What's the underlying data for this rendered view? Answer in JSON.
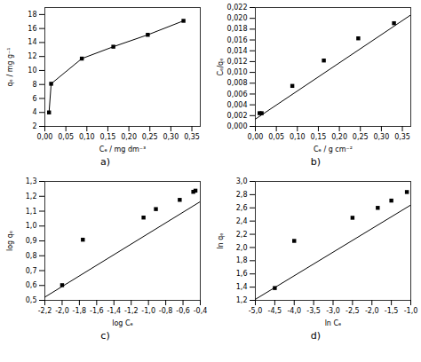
{
  "chart_data": [
    {
      "type": "line",
      "title": "a)",
      "xlabel": "Cₑ / mg dm⁻³",
      "ylabel": "qₑ / mg g⁻¹",
      "xlim": [
        0,
        0.37
      ],
      "ylim": [
        2,
        19
      ],
      "xticks": [
        {
          "value": 0.0,
          "label": "0,00"
        },
        {
          "value": 0.05,
          "label": "0,05"
        },
        {
          "value": 0.1,
          "label": "0,10"
        },
        {
          "value": 0.15,
          "label": "0,15"
        },
        {
          "value": 0.2,
          "label": "0,20"
        },
        {
          "value": 0.25,
          "label": "0,25"
        },
        {
          "value": 0.3,
          "label": "0,30"
        },
        {
          "value": 0.35,
          "label": "0,35"
        }
      ],
      "yticks": [
        2,
        4,
        6,
        8,
        10,
        12,
        14,
        16,
        18
      ],
      "series": [
        {
          "type": "line",
          "marker": "square",
          "x": [
            0.01,
            0.015,
            0.088,
            0.163,
            0.245,
            0.33
          ],
          "values": [
            4.0,
            8.1,
            11.7,
            13.4,
            15.1,
            17.1
          ]
        }
      ]
    },
    {
      "type": "scatter",
      "title": "b)",
      "xlabel": "Cₑ / g cm⁻²",
      "ylabel": "Cₑ/qₑ",
      "xlim": [
        0,
        0.37
      ],
      "ylim": [
        0.0,
        0.022
      ],
      "xticks": [
        {
          "value": 0.0,
          "label": "0,00"
        },
        {
          "value": 0.05,
          "label": "0,05"
        },
        {
          "value": 0.1,
          "label": "0,10"
        },
        {
          "value": 0.15,
          "label": "0,15"
        },
        {
          "value": 0.2,
          "label": "0,20"
        },
        {
          "value": 0.25,
          "label": "0,25"
        },
        {
          "value": 0.3,
          "label": "0,30"
        },
        {
          "value": 0.35,
          "label": "0,35"
        }
      ],
      "yticks": [
        {
          "value": 0.0,
          "label": "0,000"
        },
        {
          "value": 0.002,
          "label": "0,002"
        },
        {
          "value": 0.004,
          "label": "0,004"
        },
        {
          "value": 0.006,
          "label": "0,006"
        },
        {
          "value": 0.008,
          "label": "0,008"
        },
        {
          "value": 0.01,
          "label": "0,010"
        },
        {
          "value": 0.012,
          "label": "0,012"
        },
        {
          "value": 0.014,
          "label": "0,014"
        },
        {
          "value": 0.016,
          "label": "0,016"
        },
        {
          "value": 0.018,
          "label": "0,018"
        },
        {
          "value": 0.02,
          "label": "0,020"
        },
        {
          "value": 0.022,
          "label": "0,022"
        }
      ],
      "series": [
        {
          "type": "line",
          "x": [
            0,
            0.37
          ],
          "values": [
            0.00135,
            0.020627
          ]
        },
        {
          "type": "scatter",
          "marker": "square",
          "x": [
            0.01,
            0.015,
            0.088,
            0.163,
            0.245,
            0.33
          ],
          "values": [
            0.00245,
            0.00245,
            0.0075,
            0.0122,
            0.0163,
            0.0191
          ]
        }
      ]
    },
    {
      "type": "scatter",
      "title": "c)",
      "xlabel": "log Cₑ",
      "ylabel": "log qₑ",
      "xlim": [
        -2.2,
        -0.4
      ],
      "ylim": [
        0.5,
        1.3
      ],
      "xticks": [
        {
          "value": -2.2,
          "label": "-2,2"
        },
        {
          "value": -2.0,
          "label": "-2,0"
        },
        {
          "value": -1.8,
          "label": "-1,8"
        },
        {
          "value": -1.6,
          "label": "-1,6"
        },
        {
          "value": -1.4,
          "label": "-1,4"
        },
        {
          "value": -1.2,
          "label": "-1,2"
        },
        {
          "value": -1.0,
          "label": "-1,0"
        },
        {
          "value": -0.8,
          "label": "-0,8"
        },
        {
          "value": -0.6,
          "label": "-0,6"
        },
        {
          "value": -0.4,
          "label": "-0,4"
        }
      ],
      "yticks": [
        {
          "value": 0.5,
          "label": "0,5"
        },
        {
          "value": 0.6,
          "label": "0,6"
        },
        {
          "value": 0.7,
          "label": "0,7"
        },
        {
          "value": 0.8,
          "label": "0,8"
        },
        {
          "value": 0.9,
          "label": "0,9"
        },
        {
          "value": 1.0,
          "label": "1,0"
        },
        {
          "value": 1.1,
          "label": "1,1"
        },
        {
          "value": 1.2,
          "label": "1,2"
        },
        {
          "value": 1.3,
          "label": "1,3"
        }
      ],
      "series": [
        {
          "type": "line",
          "x": [
            -2.2,
            -0.4
          ],
          "values": [
            0.5216,
            1.1642
          ]
        },
        {
          "type": "scatter",
          "marker": "square",
          "x": [
            -2.0,
            -1.76,
            -1.057,
            -0.914,
            -0.638,
            -0.481,
            -0.456
          ],
          "values": [
            0.602,
            0.908,
            1.057,
            1.114,
            1.176,
            1.23,
            1.238
          ]
        }
      ]
    },
    {
      "type": "scatter",
      "title": "d)",
      "xlabel": "ln Cₑ",
      "ylabel": "ln qₑ",
      "xlim": [
        -5.0,
        -1.0
      ],
      "ylim": [
        1.2,
        3.0
      ],
      "xticks": [
        {
          "value": -5.0,
          "label": "-5,0"
        },
        {
          "value": -4.5,
          "label": "-4,5"
        },
        {
          "value": -4.0,
          "label": "-4,0"
        },
        {
          "value": -3.5,
          "label": "-3,5"
        },
        {
          "value": -3.0,
          "label": "-3,0"
        },
        {
          "value": -2.5,
          "label": "-2,5"
        },
        {
          "value": -2.0,
          "label": "-2,0"
        },
        {
          "value": -1.5,
          "label": "-1,5"
        },
        {
          "value": -1.0,
          "label": "-1,0"
        }
      ],
      "yticks": [
        {
          "value": 1.2,
          "label": "1,2"
        },
        {
          "value": 1.4,
          "label": "1,4"
        },
        {
          "value": 1.6,
          "label": "1,6"
        },
        {
          "value": 1.8,
          "label": "1,8"
        },
        {
          "value": 2.0,
          "label": "2,0"
        },
        {
          "value": 2.2,
          "label": "2,2"
        },
        {
          "value": 2.4,
          "label": "2,4"
        },
        {
          "value": 2.6,
          "label": "2,6"
        },
        {
          "value": 2.8,
          "label": "2,8"
        },
        {
          "value": 3.0,
          "label": "3,0"
        }
      ],
      "series": [
        {
          "type": "line",
          "x": [
            -5.0,
            -1.0
          ],
          "values": [
            1.215,
            2.643
          ]
        },
        {
          "type": "scatter",
          "marker": "square",
          "x": [
            -4.5,
            -4.0,
            -2.5,
            -1.85,
            -1.5,
            -1.1
          ],
          "values": [
            1.386,
            2.1,
            2.45,
            2.6,
            2.71,
            2.84
          ]
        }
      ]
    }
  ]
}
